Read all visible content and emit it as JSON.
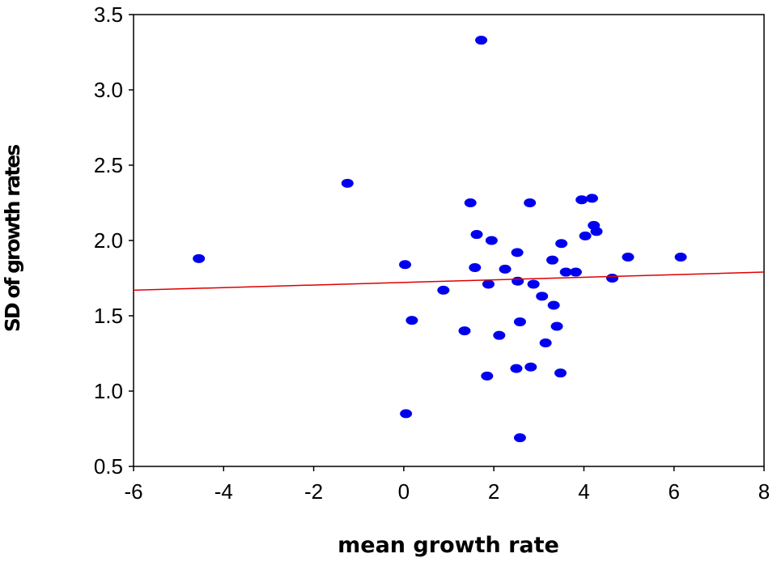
{
  "chart_data": {
    "type": "scatter",
    "title": "",
    "xlabel": "mean growth rate",
    "ylabel": "SD of growth rates",
    "xlim": [
      -6,
      8
    ],
    "ylim": [
      0.5,
      3.5
    ],
    "xticks": [
      -6,
      -4,
      -2,
      0,
      2,
      4,
      6,
      8
    ],
    "yticks": [
      0.5,
      1.0,
      1.5,
      2.0,
      2.5,
      3.0,
      3.5
    ],
    "xtick_labels": [
      "-6",
      "-4",
      "-2",
      "0",
      "2",
      "4",
      "6",
      "8"
    ],
    "ytick_labels": [
      "0.5",
      "1.0",
      "1.5",
      "2.0",
      "2.5",
      "3.0",
      "3.5"
    ],
    "grid": false,
    "legend": "none",
    "colors": {
      "points": "#0000ee",
      "trendline": "#dd0000",
      "axis": "#000000"
    },
    "points": [
      {
        "x": -4.55,
        "y": 1.88
      },
      {
        "x": -1.25,
        "y": 2.38
      },
      {
        "x": 0.03,
        "y": 1.84
      },
      {
        "x": 0.18,
        "y": 1.47
      },
      {
        "x": 0.05,
        "y": 0.85
      },
      {
        "x": 0.88,
        "y": 1.67
      },
      {
        "x": 1.35,
        "y": 1.4
      },
      {
        "x": 1.48,
        "y": 2.25
      },
      {
        "x": 1.58,
        "y": 1.82
      },
      {
        "x": 1.62,
        "y": 2.04
      },
      {
        "x": 1.72,
        "y": 3.33
      },
      {
        "x": 1.85,
        "y": 1.1
      },
      {
        "x": 1.88,
        "y": 1.71
      },
      {
        "x": 1.95,
        "y": 2.0
      },
      {
        "x": 2.12,
        "y": 1.37
      },
      {
        "x": 2.25,
        "y": 1.81
      },
      {
        "x": 2.5,
        "y": 1.15
      },
      {
        "x": 2.52,
        "y": 1.92
      },
      {
        "x": 2.53,
        "y": 1.73
      },
      {
        "x": 2.58,
        "y": 1.46
      },
      {
        "x": 2.58,
        "y": 0.69
      },
      {
        "x": 2.8,
        "y": 2.25
      },
      {
        "x": 2.82,
        "y": 1.16
      },
      {
        "x": 2.88,
        "y": 1.71
      },
      {
        "x": 3.07,
        "y": 1.63
      },
      {
        "x": 3.15,
        "y": 1.32
      },
      {
        "x": 3.3,
        "y": 1.87
      },
      {
        "x": 3.33,
        "y": 1.57
      },
      {
        "x": 3.4,
        "y": 1.43
      },
      {
        "x": 3.48,
        "y": 1.12
      },
      {
        "x": 3.5,
        "y": 1.98
      },
      {
        "x": 3.6,
        "y": 1.79
      },
      {
        "x": 3.82,
        "y": 1.79
      },
      {
        "x": 3.95,
        "y": 2.27
      },
      {
        "x": 4.03,
        "y": 2.03
      },
      {
        "x": 4.18,
        "y": 2.28
      },
      {
        "x": 4.22,
        "y": 2.1
      },
      {
        "x": 4.28,
        "y": 2.06
      },
      {
        "x": 4.63,
        "y": 1.75
      },
      {
        "x": 4.98,
        "y": 1.89
      },
      {
        "x": 6.15,
        "y": 1.89
      }
    ],
    "trendline": {
      "x": [
        -6,
        8
      ],
      "y": [
        1.67,
        1.79
      ]
    }
  }
}
